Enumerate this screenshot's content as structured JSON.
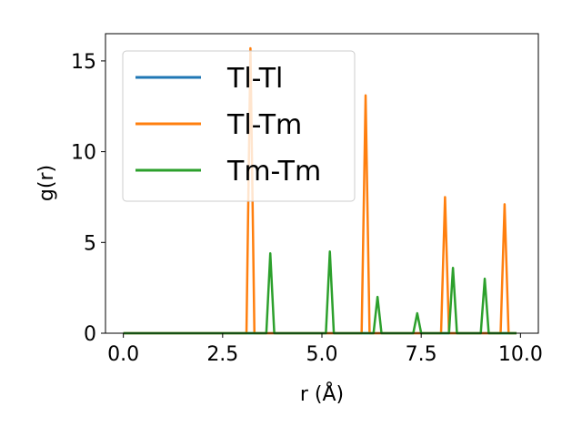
{
  "chart_data": {
    "type": "line",
    "xlabel": "r (Å)",
    "ylabel": "g(r)",
    "xlim": [
      -0.45,
      10.45
    ],
    "ylim": [
      0,
      16.5
    ],
    "xticks": [
      0.0,
      2.5,
      5.0,
      7.5,
      10.0
    ],
    "xtick_labels": [
      "0.0",
      "2.5",
      "5.0",
      "7.5",
      "10.0"
    ],
    "yticks": [
      0,
      5,
      10,
      15
    ],
    "ytick_labels": [
      "0",
      "5",
      "10",
      "15"
    ],
    "grid": false,
    "legend_position": "top-left",
    "series": [
      {
        "name": "Tl-Tl",
        "color": "#1f77b4",
        "x": [
          0.0,
          9.9
        ],
        "y": [
          0.0,
          0.0
        ]
      },
      {
        "name": "Tl-Tm",
        "color": "#ff7f0e",
        "x": [
          0.0,
          3.1,
          3.2,
          3.3,
          6.0,
          6.1,
          6.2,
          8.0,
          8.1,
          8.2,
          9.5,
          9.6,
          9.7,
          9.9
        ],
        "y": [
          0.0,
          0.0,
          15.7,
          0.0,
          0.0,
          13.1,
          0.0,
          0.0,
          7.5,
          0.0,
          0.0,
          7.1,
          0.0,
          0.0
        ]
      },
      {
        "name": "Tm-Tm",
        "color": "#2ca02c",
        "x": [
          0.0,
          3.6,
          3.7,
          3.8,
          5.1,
          5.2,
          5.3,
          6.3,
          6.4,
          6.5,
          7.3,
          7.4,
          7.5,
          8.2,
          8.3,
          8.4,
          9.0,
          9.1,
          9.2,
          9.9
        ],
        "y": [
          0.0,
          0.0,
          4.4,
          0.0,
          0.0,
          4.5,
          0.0,
          0.0,
          2.0,
          0.0,
          0.0,
          1.1,
          0.0,
          0.0,
          3.6,
          0.0,
          0.0,
          3.0,
          0.0,
          0.0
        ]
      }
    ]
  }
}
